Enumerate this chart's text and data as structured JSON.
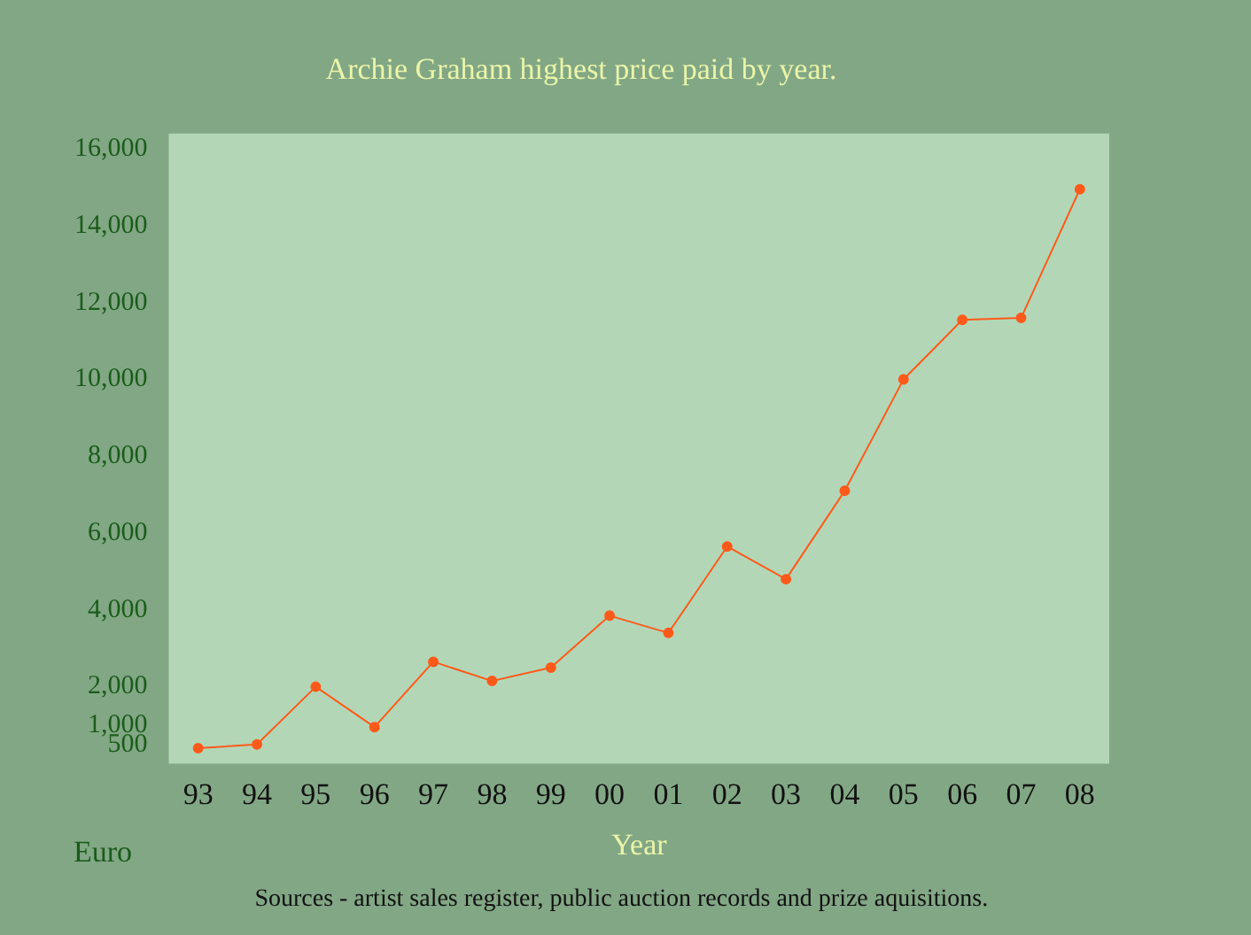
{
  "chart_data": {
    "type": "line",
    "title": "Archie Graham highest price paid by year.",
    "xlabel": "Year",
    "ylabel": "Euro",
    "categories": [
      "93",
      "94",
      "95",
      "96",
      "97",
      "98",
      "99",
      "00",
      "01",
      "02",
      "03",
      "04",
      "05",
      "06",
      "07",
      "08"
    ],
    "series": [
      {
        "color": "#ff5a1a",
        "values": [
          400,
          500,
          2000,
          950,
          2650,
          2150,
          2500,
          3850,
          3400,
          5650,
          4800,
          7100,
          10000,
          11550,
          11600,
          14950
        ]
      }
    ],
    "ylim": [
      0,
      16400
    ],
    "yticks": [
      500,
      {
        "value": 1000,
        "label": "1,000"
      },
      {
        "value": 2000,
        "label": "2,000"
      },
      {
        "value": 4000,
        "label": "4,000"
      },
      {
        "value": 6000,
        "label": "6,000"
      },
      {
        "value": 8000,
        "label": "8,000"
      },
      {
        "value": 10000,
        "label": "10,000"
      },
      {
        "value": 12000,
        "label": "12,000"
      },
      {
        "value": 14000,
        "label": "14,000"
      },
      {
        "value": 16000,
        "label": "16,000"
      }
    ],
    "grid": false,
    "legend": false,
    "marker": "circle",
    "line_style": "solid",
    "annotations": [
      "Sources - artist sales register, public auction records and prize aquisitions."
    ]
  }
}
